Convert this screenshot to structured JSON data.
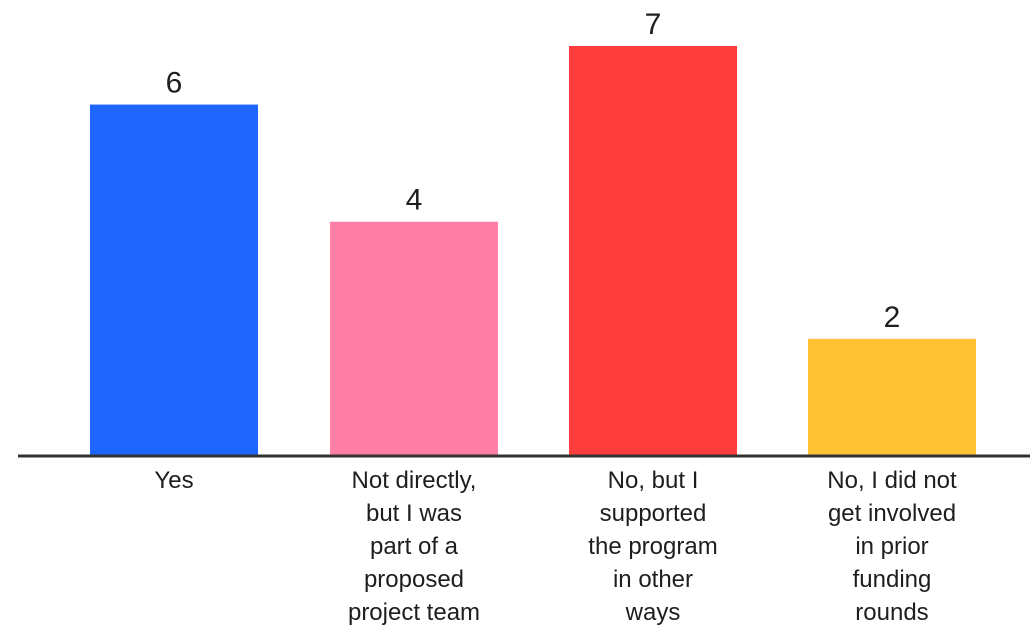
{
  "chart_data": {
    "type": "bar",
    "categories": [
      "Yes",
      "Not directly, but I was part of a proposed project team",
      "No, but I supported the program in other ways",
      "No, I did not get involved in prior funding rounds"
    ],
    "category_lines": [
      [
        "Yes"
      ],
      [
        "Not directly,",
        "but I was",
        "part of a",
        "proposed",
        "project team"
      ],
      [
        "No, but I",
        "supported",
        "the program",
        "in other",
        "ways"
      ],
      [
        "No, I did not",
        "get involved",
        "in prior",
        "funding",
        "rounds"
      ]
    ],
    "values": [
      6,
      4,
      7,
      2
    ],
    "value_labels": [
      "6",
      "4",
      "7",
      "2"
    ],
    "colors": [
      "#1f66ff",
      "#ff7fa6",
      "#ff3d3d",
      "#ffc233"
    ],
    "axis_color": "#333333",
    "ylim": [
      0,
      7
    ]
  }
}
